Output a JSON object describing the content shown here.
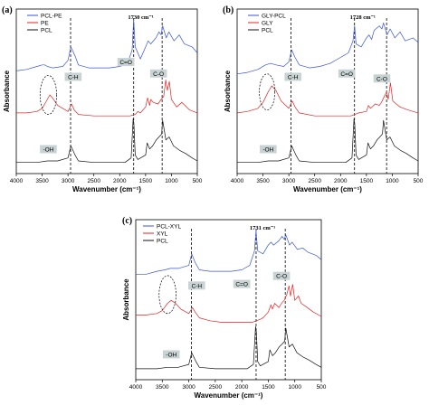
{
  "colors": {
    "blue": "#3a55d6",
    "red": "#e02424",
    "black": "#111111",
    "label_box": "#c9d3d3"
  },
  "chart_data": [
    {
      "panel": "(a)",
      "type": "line",
      "xlabel": "Wavenumber (cm⁻¹)",
      "ylabel": "Absorbance",
      "xlim": [
        4000,
        500
      ],
      "xticks": [
        4000,
        3500,
        3000,
        2500,
        2000,
        1500,
        1000,
        500
      ],
      "legend_position": "top-left",
      "peak_marker": "1730 cm⁻¹",
      "band_labels": [
        "C-H",
        "C=O",
        "C-O",
        "-OH"
      ],
      "series": [
        {
          "name": "PCL-PE",
          "color": "#3a55d6",
          "x": [
            4000,
            3800,
            3600,
            3500,
            3450,
            3400,
            3300,
            3100,
            3000,
            2945,
            2865,
            2800,
            2600,
            2400,
            2200,
            2000,
            1850,
            1760,
            1730,
            1700,
            1600,
            1500,
            1450,
            1400,
            1300,
            1240,
            1200,
            1170,
            1100,
            1050,
            950,
            850,
            750,
            600,
            500
          ],
          "y": [
            0.66,
            0.67,
            0.69,
            0.7,
            0.7,
            0.69,
            0.68,
            0.69,
            0.73,
            0.82,
            0.76,
            0.7,
            0.68,
            0.68,
            0.68,
            0.69,
            0.71,
            0.8,
            1.0,
            0.82,
            0.74,
            0.82,
            0.86,
            0.84,
            0.88,
            0.92,
            0.9,
            0.96,
            0.88,
            0.92,
            0.86,
            0.9,
            0.84,
            0.82,
            0.78
          ]
        },
        {
          "name": "PE",
          "color": "#e02424",
          "x": [
            4000,
            3800,
            3600,
            3500,
            3400,
            3350,
            3300,
            3200,
            3000,
            2930,
            2880,
            2800,
            2500,
            2200,
            2000,
            1800,
            1700,
            1650,
            1600,
            1500,
            1460,
            1420,
            1400,
            1350,
            1260,
            1200,
            1150,
            1110,
            1080,
            1040,
            1000,
            900,
            800,
            650,
            500
          ],
          "y": [
            0.38,
            0.38,
            0.39,
            0.41,
            0.47,
            0.5,
            0.48,
            0.43,
            0.39,
            0.44,
            0.4,
            0.37,
            0.36,
            0.36,
            0.36,
            0.36,
            0.37,
            0.39,
            0.38,
            0.42,
            0.48,
            0.43,
            0.47,
            0.45,
            0.44,
            0.47,
            0.49,
            0.6,
            0.53,
            0.59,
            0.47,
            0.42,
            0.45,
            0.4,
            0.38
          ]
        },
        {
          "name": "PCL",
          "color": "#111111",
          "x": [
            4000,
            3600,
            3400,
            3200,
            3000,
            2945,
            2865,
            2800,
            2500,
            2200,
            1900,
            1780,
            1740,
            1725,
            1700,
            1650,
            1500,
            1470,
            1420,
            1365,
            1295,
            1240,
            1190,
            1170,
            1108,
            1045,
            960,
            840,
            730,
            600,
            500
          ],
          "y": [
            0.05,
            0.05,
            0.06,
            0.06,
            0.08,
            0.16,
            0.1,
            0.06,
            0.05,
            0.05,
            0.05,
            0.08,
            0.34,
            0.3,
            0.1,
            0.07,
            0.1,
            0.18,
            0.14,
            0.16,
            0.2,
            0.22,
            0.24,
            0.33,
            0.2,
            0.22,
            0.16,
            0.13,
            0.11,
            0.08,
            0.06
          ]
        }
      ]
    },
    {
      "panel": "(b)",
      "type": "line",
      "xlabel": "Wavenumber (cm⁻¹)",
      "ylabel": "Absorbance",
      "xlim": [
        4000,
        500
      ],
      "xticks": [
        4000,
        3500,
        3000,
        2500,
        2000,
        1500,
        1000,
        500
      ],
      "legend_position": "top-left",
      "peak_marker": "1728 cm⁻¹",
      "band_labels": [
        "C-H",
        "C=O",
        "C-O",
        "-OH"
      ],
      "series": [
        {
          "name": "GLY-PCL",
          "color": "#3a55d6",
          "x": [
            4000,
            3800,
            3600,
            3450,
            3350,
            3250,
            3100,
            3000,
            2945,
            2880,
            2800,
            2600,
            2400,
            2200,
            2000,
            1850,
            1760,
            1728,
            1700,
            1600,
            1500,
            1450,
            1400,
            1350,
            1250,
            1200,
            1170,
            1100,
            1040,
            950,
            850,
            750,
            600,
            500
          ],
          "y": [
            0.64,
            0.65,
            0.67,
            0.7,
            0.71,
            0.7,
            0.69,
            0.72,
            0.8,
            0.75,
            0.7,
            0.68,
            0.69,
            0.71,
            0.75,
            0.78,
            0.86,
            0.96,
            0.84,
            0.82,
            0.88,
            0.9,
            0.87,
            0.93,
            0.96,
            0.94,
            0.98,
            0.9,
            0.94,
            0.88,
            0.92,
            0.86,
            0.88,
            0.85
          ]
        },
        {
          "name": "GLY",
          "color": "#e02424",
          "x": [
            4000,
            3800,
            3600,
            3500,
            3400,
            3330,
            3250,
            3150,
            3000,
            2935,
            2880,
            2800,
            2500,
            2200,
            2000,
            1800,
            1650,
            1500,
            1460,
            1420,
            1330,
            1250,
            1210,
            1110,
            1080,
            1035,
            990,
            925,
            850,
            700,
            500
          ],
          "y": [
            0.38,
            0.39,
            0.41,
            0.45,
            0.52,
            0.56,
            0.53,
            0.46,
            0.41,
            0.46,
            0.42,
            0.38,
            0.36,
            0.36,
            0.36,
            0.36,
            0.38,
            0.39,
            0.43,
            0.41,
            0.44,
            0.43,
            0.45,
            0.52,
            0.47,
            0.58,
            0.46,
            0.44,
            0.42,
            0.4,
            0.38
          ]
        },
        {
          "name": "PCL",
          "color": "#111111",
          "x": [
            4000,
            3600,
            3400,
            3200,
            3000,
            2945,
            2865,
            2800,
            2500,
            2200,
            1900,
            1780,
            1740,
            1725,
            1700,
            1650,
            1500,
            1470,
            1420,
            1365,
            1295,
            1240,
            1190,
            1170,
            1108,
            1045,
            960,
            840,
            730,
            600,
            500
          ],
          "y": [
            0.05,
            0.05,
            0.06,
            0.06,
            0.08,
            0.16,
            0.1,
            0.06,
            0.05,
            0.05,
            0.05,
            0.08,
            0.34,
            0.3,
            0.1,
            0.07,
            0.1,
            0.18,
            0.14,
            0.16,
            0.2,
            0.22,
            0.24,
            0.33,
            0.2,
            0.22,
            0.16,
            0.13,
            0.11,
            0.08,
            0.06
          ]
        }
      ]
    },
    {
      "panel": "(c)",
      "type": "line",
      "xlabel": "Wavenumber (cm⁻¹)",
      "ylabel": "Absorbance",
      "xlim": [
        4000,
        500
      ],
      "xticks": [
        4000,
        3500,
        3000,
        2500,
        2000,
        1500,
        1000,
        500
      ],
      "legend_position": "top-left",
      "peak_marker": "1731 cm⁻¹",
      "band_labels": [
        "C-H",
        "C=O",
        "C-O",
        "-OH"
      ],
      "series": [
        {
          "name": "PCL-XYL",
          "color": "#3a55d6",
          "x": [
            4000,
            3800,
            3600,
            3450,
            3350,
            3200,
            3000,
            2945,
            2880,
            2800,
            2600,
            2400,
            2200,
            2000,
            1850,
            1760,
            1731,
            1700,
            1600,
            1500,
            1450,
            1400,
            1300,
            1240,
            1200,
            1170,
            1100,
            1050,
            950,
            850,
            750,
            600,
            500
          ],
          "y": [
            0.7,
            0.7,
            0.72,
            0.73,
            0.74,
            0.74,
            0.76,
            0.84,
            0.78,
            0.73,
            0.72,
            0.72,
            0.72,
            0.73,
            0.76,
            0.86,
            1.0,
            0.86,
            0.84,
            0.9,
            0.92,
            0.9,
            0.93,
            0.96,
            0.94,
            0.97,
            0.9,
            0.92,
            0.87,
            0.88,
            0.85,
            0.83,
            0.8
          ]
        },
        {
          "name": "XYL",
          "color": "#e02424",
          "x": [
            4000,
            3800,
            3600,
            3500,
            3400,
            3330,
            3250,
            3150,
            3000,
            2930,
            2880,
            2800,
            2600,
            2400,
            2200,
            2000,
            1800,
            1650,
            1600,
            1500,
            1450,
            1420,
            1380,
            1300,
            1250,
            1200,
            1150,
            1110,
            1080,
            1040,
            1000,
            930,
            880,
            800,
            650,
            500
          ],
          "y": [
            0.42,
            0.42,
            0.43,
            0.45,
            0.5,
            0.52,
            0.5,
            0.46,
            0.43,
            0.47,
            0.44,
            0.4,
            0.38,
            0.37,
            0.37,
            0.37,
            0.37,
            0.39,
            0.4,
            0.44,
            0.49,
            0.46,
            0.5,
            0.47,
            0.5,
            0.52,
            0.56,
            0.62,
            0.55,
            0.63,
            0.52,
            0.55,
            0.5,
            0.48,
            0.44,
            0.41
          ]
        },
        {
          "name": "PCL",
          "color": "#111111",
          "x": [
            4000,
            3600,
            3400,
            3200,
            3000,
            2945,
            2865,
            2800,
            2500,
            2200,
            1900,
            1780,
            1740,
            1725,
            1700,
            1650,
            1500,
            1470,
            1420,
            1365,
            1295,
            1240,
            1190,
            1170,
            1108,
            1045,
            960,
            840,
            730,
            600,
            500
          ],
          "y": [
            0.05,
            0.05,
            0.06,
            0.06,
            0.08,
            0.16,
            0.1,
            0.06,
            0.05,
            0.05,
            0.05,
            0.08,
            0.34,
            0.3,
            0.1,
            0.07,
            0.1,
            0.18,
            0.14,
            0.16,
            0.2,
            0.22,
            0.24,
            0.33,
            0.2,
            0.22,
            0.16,
            0.13,
            0.11,
            0.08,
            0.06
          ]
        }
      ]
    }
  ]
}
